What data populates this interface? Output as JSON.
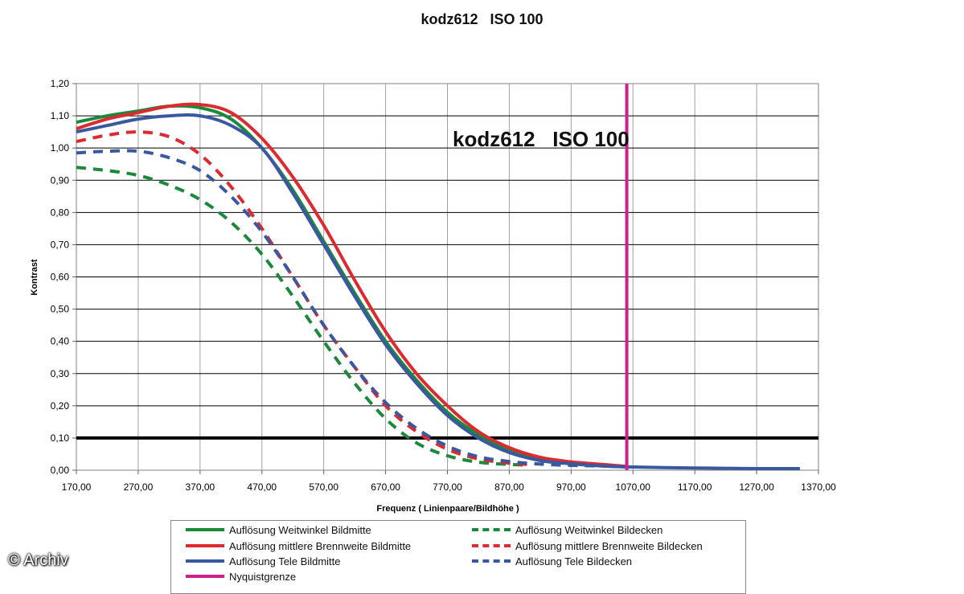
{
  "watermark": "© Archiv",
  "chart_data": {
    "type": "line",
    "title": "kodz612   ISO 100",
    "inner_title": "kodz612   ISO 100",
    "xlabel": "Frequenz ( Linienpaare/Bildhöhe )",
    "ylabel": "Kontrast",
    "xlim": [
      170,
      1370
    ],
    "ylim": [
      0,
      1.2
    ],
    "x_ticks": [
      "170,00",
      "270,00",
      "370,00",
      "470,00",
      "570,00",
      "670,00",
      "770,00",
      "870,00",
      "970,00",
      "1070,00",
      "1170,00",
      "1270,00",
      "1370,00"
    ],
    "y_ticks": [
      "0,00",
      "0,10",
      "0,20",
      "0,30",
      "0,40",
      "0,50",
      "0,60",
      "0,70",
      "0,80",
      "0,90",
      "1,00",
      "1,10",
      "1,20"
    ],
    "grid": true,
    "legend_position": "bottom",
    "series": [
      {
        "name": "Auflösung Weitwinkel Bildmitte",
        "color": "#1a8a3a",
        "dash": "solid",
        "x": [
          170,
          220,
          270,
          320,
          370,
          420,
          470,
          520,
          570,
          620,
          670,
          720,
          770,
          820,
          870,
          920,
          970,
          1020,
          1060
        ],
        "y": [
          1.08,
          1.1,
          1.115,
          1.13,
          1.125,
          1.09,
          1.0,
          0.87,
          0.71,
          0.55,
          0.4,
          0.28,
          0.18,
          0.11,
          0.06,
          0.035,
          0.022,
          0.015,
          0.01
        ]
      },
      {
        "name": "Auflösung mittlere Brennweite Bildmitte",
        "color": "#dd2a2e",
        "dash": "solid",
        "x": [
          170,
          220,
          270,
          320,
          370,
          420,
          470,
          520,
          570,
          620,
          670,
          720,
          770,
          820,
          870,
          920,
          970,
          1020,
          1060
        ],
        "y": [
          1.06,
          1.09,
          1.11,
          1.13,
          1.135,
          1.11,
          1.03,
          0.91,
          0.76,
          0.59,
          0.43,
          0.3,
          0.2,
          0.12,
          0.07,
          0.04,
          0.026,
          0.018,
          0.012
        ]
      },
      {
        "name": "Auflösung Tele Bildmitte",
        "color": "#3a58a0",
        "dash": "solid",
        "x": [
          170,
          220,
          270,
          320,
          370,
          420,
          470,
          520,
          570,
          620,
          670,
          720,
          770,
          820,
          870,
          920,
          970,
          1020,
          1070,
          1120,
          1170,
          1220,
          1270,
          1340
        ],
        "y": [
          1.05,
          1.07,
          1.09,
          1.1,
          1.1,
          1.07,
          1.0,
          0.86,
          0.7,
          0.54,
          0.39,
          0.27,
          0.17,
          0.1,
          0.055,
          0.03,
          0.02,
          0.013,
          0.01,
          0.008,
          0.007,
          0.006,
          0.005,
          0.005
        ]
      },
      {
        "name": "Nyquistgrenze",
        "color": "#d01e8e",
        "dash": "solid",
        "x": [
          1060,
          1060
        ],
        "y": [
          0,
          1.2
        ]
      },
      {
        "name": "Auflösung Weitwinkel Bildecken",
        "color": "#1a8a3a",
        "dash": "dashed",
        "x": [
          170,
          220,
          270,
          320,
          370,
          420,
          470,
          520,
          570,
          620,
          670,
          720,
          770,
          820,
          870,
          900
        ],
        "y": [
          0.94,
          0.93,
          0.915,
          0.885,
          0.84,
          0.77,
          0.67,
          0.54,
          0.4,
          0.27,
          0.16,
          0.085,
          0.045,
          0.025,
          0.018,
          0.016
        ]
      },
      {
        "name": "Auflösung mittlere Brennweite Bildecken",
        "color": "#dd2a2e",
        "dash": "dashed",
        "x": [
          170,
          220,
          270,
          320,
          370,
          420,
          470,
          520,
          570,
          620,
          670,
          720,
          770,
          820,
          870,
          900
        ],
        "y": [
          1.02,
          1.04,
          1.05,
          1.035,
          0.98,
          0.88,
          0.75,
          0.6,
          0.45,
          0.32,
          0.2,
          0.12,
          0.065,
          0.035,
          0.022,
          0.018
        ]
      },
      {
        "name": "Auflösung Tele Bildecken",
        "color": "#3a58a0",
        "dash": "dashed",
        "x": [
          170,
          220,
          270,
          320,
          370,
          420,
          470,
          520,
          570,
          620,
          670,
          720,
          770,
          820,
          870,
          920,
          970,
          1020,
          1070
        ],
        "y": [
          0.985,
          0.99,
          0.99,
          0.97,
          0.93,
          0.85,
          0.74,
          0.6,
          0.45,
          0.32,
          0.21,
          0.13,
          0.075,
          0.042,
          0.027,
          0.019,
          0.015,
          0.013,
          0.012
        ]
      }
    ],
    "reference_lines": [
      {
        "axis": "y",
        "value": 0.1,
        "color": "#000000"
      }
    ]
  }
}
